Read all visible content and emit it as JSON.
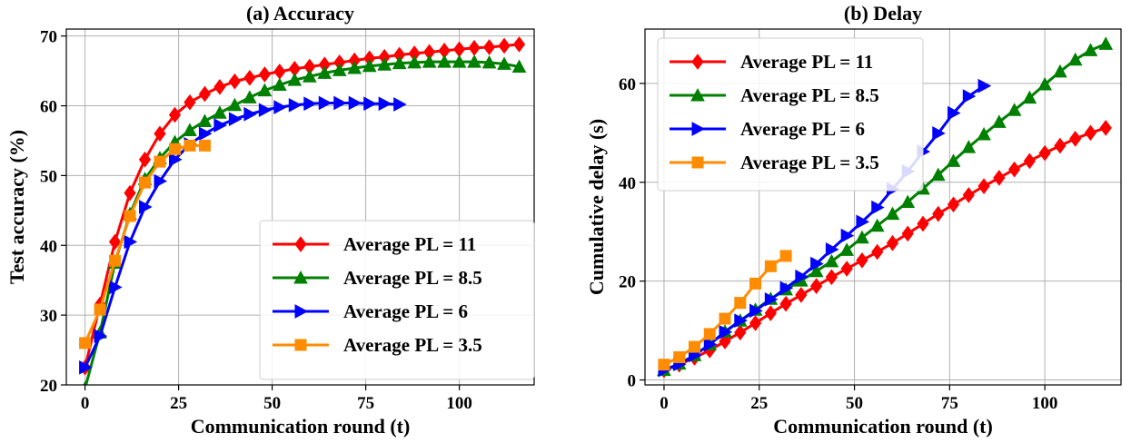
{
  "colors": {
    "Average PL = 11": "#ff0000",
    "Average PL = 8.5": "#008000",
    "Average PL = 6": "#0000ff",
    "Average PL = 3.5": "#ff8c00"
  },
  "chart_data": [
    {
      "type": "line",
      "title": "(a) Accuracy",
      "xlabel": "Communication round (t)",
      "ylabel": "Test accuracy (%)",
      "xlim": [
        -5,
        120
      ],
      "ylim": [
        20,
        71
      ],
      "xticks": [
        0,
        25,
        50,
        75,
        100
      ],
      "yticks": [
        20,
        30,
        40,
        50,
        60,
        70
      ],
      "grid": true,
      "legend_position": "lower-right",
      "series": [
        {
          "name": "Average PL = 11",
          "marker": "diamond",
          "x": [
            0,
            4,
            8,
            12,
            16,
            20,
            24,
            28,
            32,
            36,
            40,
            44,
            48,
            52,
            56,
            60,
            64,
            68,
            72,
            76,
            80,
            84,
            88,
            92,
            96,
            100,
            104,
            108,
            112,
            116
          ],
          "y": [
            22.5,
            31.5,
            40.5,
            47.5,
            52.3,
            56.0,
            58.7,
            60.5,
            61.7,
            62.7,
            63.5,
            64.0,
            64.5,
            64.9,
            65.3,
            65.6,
            65.9,
            66.2,
            66.5,
            66.8,
            67.0,
            67.3,
            67.5,
            67.7,
            67.9,
            68.1,
            68.3,
            68.4,
            68.6,
            68.8
          ]
        },
        {
          "name": "Average PL = 8.5",
          "marker": "triangle-up",
          "x": [
            0,
            4,
            8,
            12,
            16,
            20,
            24,
            28,
            32,
            36,
            40,
            44,
            48,
            52,
            56,
            60,
            64,
            68,
            72,
            76,
            80,
            84,
            88,
            92,
            96,
            100,
            104,
            108,
            112,
            116
          ],
          "y": [
            19.5,
            27.5,
            37.5,
            44.5,
            49.5,
            52.5,
            54.8,
            56.5,
            57.8,
            59.0,
            60.1,
            61.2,
            62.2,
            63.0,
            63.7,
            64.2,
            64.7,
            65.1,
            65.4,
            65.7,
            65.9,
            66.1,
            66.2,
            66.3,
            66.3,
            66.3,
            66.3,
            66.2,
            66.0,
            65.6
          ]
        },
        {
          "name": "Average PL = 6",
          "marker": "triangle-right",
          "x": [
            0,
            4,
            8,
            12,
            16,
            20,
            24,
            28,
            32,
            36,
            40,
            44,
            48,
            52,
            56,
            60,
            64,
            68,
            72,
            76,
            80,
            84
          ],
          "y": [
            22.5,
            27.0,
            34.0,
            40.5,
            45.5,
            49.2,
            52.3,
            54.5,
            56.0,
            57.2,
            58.1,
            58.8,
            59.4,
            59.8,
            60.1,
            60.3,
            60.4,
            60.4,
            60.4,
            60.3,
            60.3,
            60.2
          ]
        },
        {
          "name": "Average PL = 3.5",
          "marker": "square",
          "x": [
            0,
            4,
            8,
            12,
            16,
            20,
            24,
            28,
            32
          ],
          "y": [
            26.0,
            30.8,
            37.8,
            44.2,
            49.0,
            52.0,
            53.8,
            54.3,
            54.3
          ]
        }
      ]
    },
    {
      "type": "line",
      "title": "(b) Delay",
      "xlabel": "Communication round (t)",
      "ylabel": "Cumulative delay (s)",
      "xlim": [
        -5,
        120
      ],
      "ylim": [
        -1,
        71
      ],
      "xticks": [
        0,
        25,
        50,
        75,
        100
      ],
      "yticks": [
        0,
        20,
        40,
        60
      ],
      "grid": true,
      "legend_position": "upper-left",
      "series": [
        {
          "name": "Average PL = 11",
          "marker": "diamond",
          "x": [
            0,
            4,
            8,
            12,
            16,
            20,
            24,
            28,
            32,
            36,
            40,
            44,
            48,
            52,
            56,
            60,
            64,
            68,
            72,
            76,
            80,
            84,
            88,
            92,
            96,
            100,
            104,
            108,
            112,
            116
          ],
          "y": [
            2.0,
            3.1,
            4.5,
            6.0,
            7.8,
            9.6,
            11.5,
            13.5,
            15.4,
            17.2,
            19.0,
            20.8,
            22.5,
            24.2,
            25.9,
            27.7,
            29.6,
            31.6,
            33.6,
            35.5,
            37.4,
            39.2,
            40.9,
            42.6,
            44.3,
            45.9,
            47.4,
            48.8,
            50.0,
            51.0
          ]
        },
        {
          "name": "Average PL = 8.5",
          "marker": "triangle-up",
          "x": [
            0,
            4,
            8,
            12,
            16,
            20,
            24,
            28,
            32,
            36,
            40,
            44,
            48,
            52,
            56,
            60,
            64,
            68,
            72,
            76,
            80,
            84,
            88,
            92,
            96,
            100,
            104,
            108,
            112,
            116
          ],
          "y": [
            2.0,
            3.3,
            5.0,
            7.2,
            9.8,
            12.0,
            14.2,
            16.4,
            18.3,
            20.1,
            22.0,
            24.0,
            26.3,
            28.8,
            31.2,
            33.6,
            36.0,
            38.7,
            41.5,
            44.3,
            47.1,
            49.7,
            52.2,
            54.6,
            57.1,
            59.8,
            62.4,
            64.8,
            66.7,
            68.0
          ]
        },
        {
          "name": "Average PL = 6",
          "marker": "triangle-right",
          "x": [
            0,
            4,
            8,
            12,
            16,
            20,
            24,
            28,
            32,
            36,
            40,
            44,
            48,
            52,
            56,
            60,
            64,
            68,
            72,
            76,
            80,
            84
          ],
          "y": [
            2.0,
            3.2,
            5.0,
            7.2,
            9.7,
            12.0,
            14.0,
            16.3,
            18.6,
            20.9,
            23.5,
            26.4,
            29.2,
            32.0,
            34.9,
            38.6,
            42.2,
            46.2,
            49.9,
            54.0,
            57.4,
            59.5
          ]
        },
        {
          "name": "Average PL = 3.5",
          "marker": "square",
          "x": [
            0,
            4,
            8,
            12,
            16,
            20,
            24,
            28,
            32
          ],
          "y": [
            3.1,
            4.6,
            6.7,
            9.3,
            12.4,
            15.6,
            19.5,
            23.0,
            25.1
          ]
        }
      ]
    }
  ]
}
